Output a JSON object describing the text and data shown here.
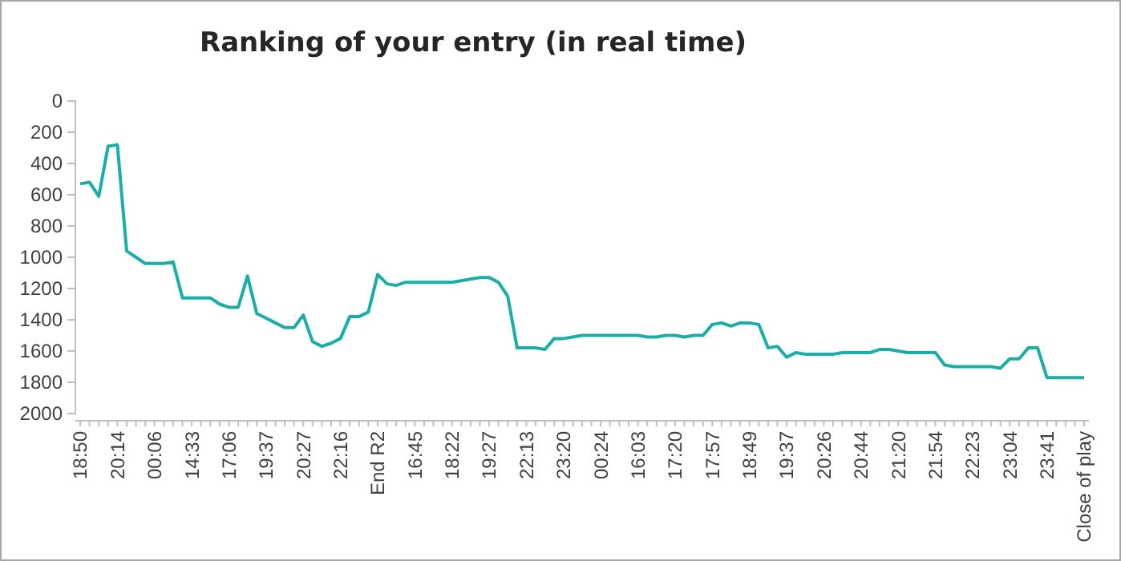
{
  "chart_data": {
    "type": "line",
    "title": "Ranking of your entry (in real time)",
    "categories": [
      "18:50",
      null,
      null,
      null,
      "20:14",
      null,
      null,
      null,
      "00:06",
      null,
      null,
      null,
      "14:33",
      null,
      null,
      null,
      "17:06",
      null,
      null,
      null,
      "19:37",
      null,
      null,
      null,
      "20:27",
      null,
      null,
      null,
      "22:16",
      null,
      null,
      null,
      "End R2",
      null,
      null,
      null,
      "16:45",
      null,
      null,
      null,
      "18:22",
      null,
      null,
      null,
      "19:27",
      null,
      null,
      null,
      "22:13",
      null,
      null,
      null,
      "23:20",
      null,
      null,
      null,
      "00:24",
      null,
      null,
      null,
      "16:03",
      null,
      null,
      null,
      "17:20",
      null,
      null,
      null,
      "17:57",
      null,
      null,
      null,
      "18:49",
      null,
      null,
      null,
      "19:37",
      null,
      null,
      null,
      "20:26",
      null,
      null,
      null,
      "20:44",
      null,
      null,
      null,
      "21:20",
      null,
      null,
      null,
      "21:54",
      null,
      null,
      null,
      "22:23",
      null,
      null,
      null,
      "23:04",
      null,
      null,
      null,
      "23:41",
      null,
      null,
      null,
      "Close of play"
    ],
    "series": [
      {
        "color": "#1aaea6",
        "values": [
          530,
          520,
          610,
          290,
          280,
          960,
          1000,
          1040,
          1040,
          1040,
          1030,
          1260,
          1260,
          1260,
          1260,
          1300,
          1320,
          1320,
          1120,
          1360,
          1390,
          1420,
          1450,
          1450,
          1370,
          1540,
          1570,
          1550,
          1520,
          1380,
          1380,
          1350,
          1110,
          1170,
          1180,
          1160,
          1160,
          1160,
          1160,
          1160,
          1160,
          1150,
          1140,
          1130,
          1130,
          1160,
          1250,
          1580,
          1580,
          1580,
          1590,
          1520,
          1520,
          1510,
          1500,
          1500,
          1500,
          1500,
          1500,
          1500,
          1500,
          1510,
          1510,
          1500,
          1500,
          1510,
          1500,
          1500,
          1430,
          1420,
          1440,
          1420,
          1420,
          1430,
          1580,
          1570,
          1640,
          1610,
          1620,
          1620,
          1620,
          1620,
          1610,
          1610,
          1610,
          1610,
          1590,
          1590,
          1600,
          1610,
          1610,
          1610,
          1610,
          1690,
          1700,
          1700,
          1700,
          1700,
          1700,
          1710,
          1650,
          1650,
          1580,
          1580,
          1770,
          1770,
          1770,
          1770,
          1770
        ]
      }
    ],
    "ylim": [
      2000,
      0
    ],
    "yticks": [
      0,
      200,
      400,
      600,
      800,
      1000,
      1200,
      1400,
      1600,
      1800,
      2000
    ],
    "marker": "none",
    "line_style": "solid"
  }
}
